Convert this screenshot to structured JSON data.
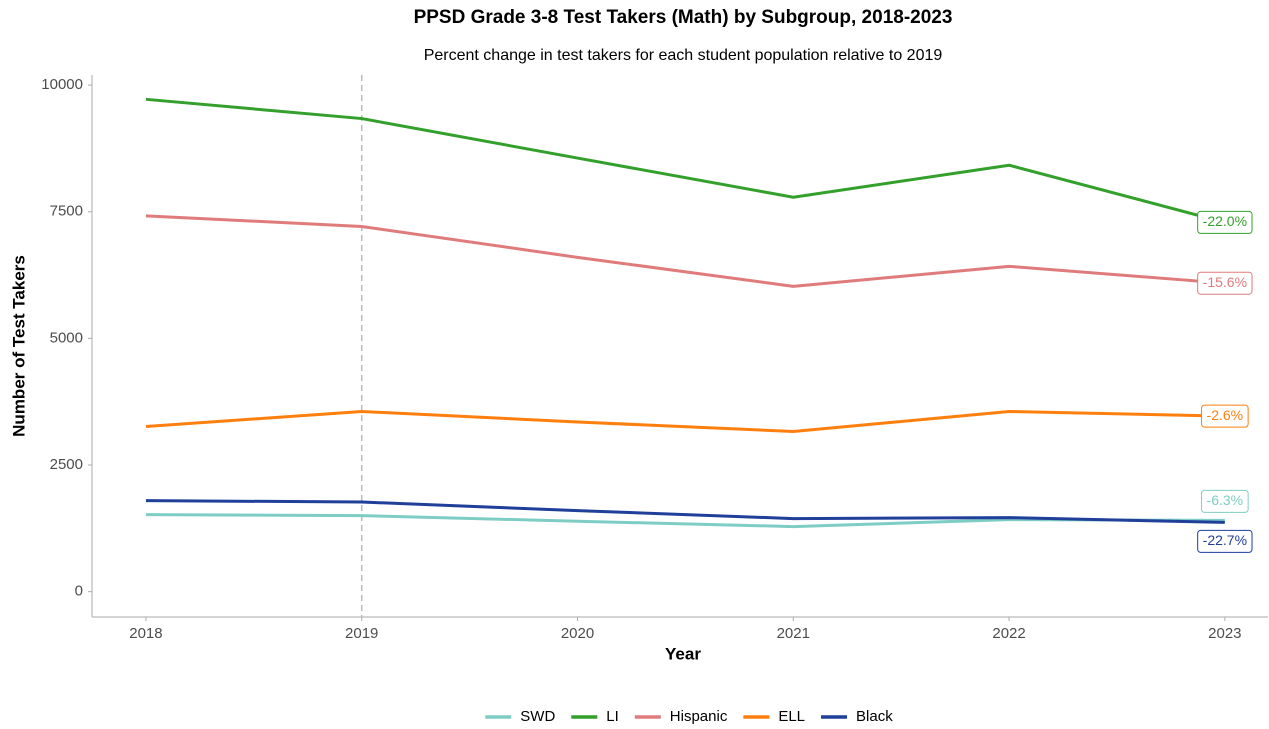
{
  "chart_data": {
    "type": "line",
    "title": "PPSD Grade 3-8  Test Takers (Math) by Subgroup, 2018-2023",
    "subtitle": "Percent change in test takers for each student population relative to 2019",
    "x_label": "Year",
    "y_label": "Number of Test Takers",
    "x": [
      2018,
      2019,
      2020,
      2021,
      2022,
      2023
    ],
    "xlim": [
      2017.75,
      2023.2
    ],
    "xticks": [
      2018,
      2019,
      2020,
      2021,
      2022,
      2023
    ],
    "ylim": [
      -500,
      10200
    ],
    "yticks": [
      0,
      2500,
      5000,
      7500,
      10000
    ],
    "reference_x": 2019,
    "legend": "bottom",
    "grid": false,
    "series": [
      {
        "name": "SWD",
        "color": "#7ecdc4",
        "values": [
          1522,
          1502,
          1390,
          1285,
          1423,
          1407
        ],
        "end_label": "-6.3%"
      },
      {
        "name": "LI",
        "color": "#33a02c",
        "values": [
          9720,
          9340,
          8560,
          7787,
          8419,
          7290
        ],
        "end_label": "-22.0%"
      },
      {
        "name": "Hispanic",
        "color": "#e07b7b",
        "values": [
          7420,
          7210,
          6600,
          6028,
          6423,
          6090
        ],
        "end_label": "-15.6%"
      },
      {
        "name": "ELL",
        "color": "#ff7f0e",
        "values": [
          3261,
          3557,
          3350,
          3162,
          3557,
          3465
        ],
        "end_label": "-2.6%"
      },
      {
        "name": "Black",
        "color": "#1f3f99",
        "values": [
          1798,
          1770,
          1600,
          1443,
          1462,
          1368
        ],
        "end_label": "-22.7%"
      }
    ]
  }
}
